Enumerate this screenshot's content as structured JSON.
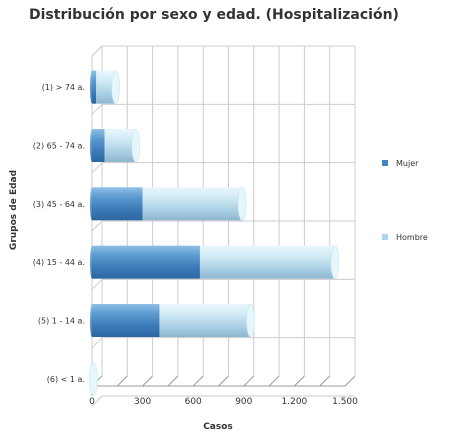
{
  "chart_data": {
    "type": "bar",
    "orientation": "horizontal",
    "stacked": true,
    "style": "3d-cylinder",
    "title": "Distribución por sexo y edad. (Hospitalización)",
    "xlabel": "Casos",
    "ylabel": "Grupos de Edad",
    "categories": [
      "(1) > 74 a.",
      "(2) 65 - 74 a.",
      "(3) 45 - 64 a.",
      "(4) 15 - 44 a.",
      "(5) 1 - 14 a.",
      "(6) < 1 a."
    ],
    "series": [
      {
        "name": "Mujer",
        "values": [
          25,
          75,
          300,
          640,
          400,
          3
        ],
        "color": "#3f85c2"
      },
      {
        "name": "Hombre",
        "values": [
          115,
          185,
          590,
          800,
          540,
          5
        ],
        "color": "#a8d8ee"
      }
    ],
    "xlim": [
      0,
      1500
    ],
    "xticks": [
      0,
      300,
      600,
      900,
      1200,
      1500
    ],
    "xtick_labels": [
      "0",
      "300",
      "600",
      "900",
      "1.200",
      "1.500"
    ],
    "grid": true,
    "legend_position": "right"
  }
}
